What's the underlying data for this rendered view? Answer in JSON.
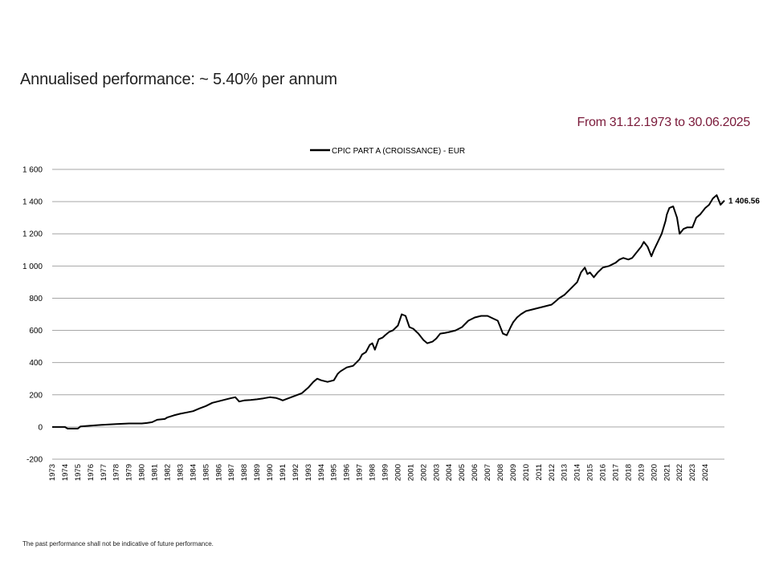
{
  "header": {
    "headline": "Annualised performance: ~ 5.40% per annum",
    "period": "From 31.12.1973 to 30.06.2025",
    "period_color": "#7a1a3a"
  },
  "footer": {
    "disclaimer": "The past performance shall not be indicative of future performance."
  },
  "chart_data": {
    "type": "line",
    "title": "",
    "xlabel": "",
    "ylabel": "",
    "ylim": [
      -200,
      1600
    ],
    "yticks": [
      -200,
      0,
      200,
      400,
      600,
      800,
      1000,
      1200,
      1400,
      1600
    ],
    "ytick_labels": [
      "-200",
      "0",
      "200",
      "400",
      "600",
      "800",
      "1 000",
      "1 200",
      "1 400",
      "1 600"
    ],
    "xlim": [
      1973.0,
      2025.5
    ],
    "xtick_labels": [
      "1973",
      "1974",
      "1975",
      "1976",
      "1977",
      "1978",
      "1979",
      "1980",
      "1981",
      "1982",
      "1983",
      "1984",
      "1985",
      "1986",
      "1987",
      "1988",
      "1989",
      "1990",
      "1991",
      "1992",
      "1993",
      "1994",
      "1995",
      "1996",
      "1997",
      "1998",
      "1999",
      "2000",
      "2001",
      "2002",
      "2003",
      "2004",
      "2005",
      "2006",
      "2007",
      "2008",
      "2009",
      "2010",
      "2011",
      "2012",
      "2013",
      "2014",
      "2015",
      "2016",
      "2017",
      "2018",
      "2019",
      "2020",
      "2021",
      "2022",
      "2023",
      "2024"
    ],
    "grid": "horizontal",
    "legend": "top-center",
    "line_color": "#000000",
    "end_label": "1 406.56",
    "series": [
      {
        "name": "CPIC PART A (CROISSANCE) - EUR",
        "x": [
          1973.0,
          1974.0,
          1974.2,
          1975.0,
          1975.2,
          1976.0,
          1977.0,
          1978.0,
          1979.0,
          1980.0,
          1980.4,
          1980.8,
          1981.2,
          1981.8,
          1982.0,
          1982.5,
          1983.0,
          1983.5,
          1984.0,
          1984.5,
          1985.0,
          1985.5,
          1986.0,
          1986.5,
          1987.0,
          1987.3,
          1987.6,
          1988.0,
          1988.5,
          1989.0,
          1989.5,
          1990.0,
          1990.5,
          1990.8,
          1991.0,
          1991.5,
          1992.0,
          1992.5,
          1993.0,
          1993.4,
          1993.7,
          1994.0,
          1994.5,
          1995.0,
          1995.3,
          1995.5,
          1996.0,
          1996.5,
          1997.0,
          1997.2,
          1997.5,
          1997.8,
          1998.0,
          1998.2,
          1998.5,
          1998.8,
          1999.0,
          1999.3,
          1999.6,
          2000.0,
          2000.3,
          2000.6,
          2000.9,
          2001.2,
          2001.6,
          2002.0,
          2002.3,
          2002.7,
          2003.0,
          2003.3,
          2003.7,
          2004.0,
          2004.5,
          2005.0,
          2005.5,
          2006.0,
          2006.5,
          2007.0,
          2007.4,
          2007.8,
          2008.0,
          2008.2,
          2008.5,
          2008.8,
          2009.0,
          2009.3,
          2009.6,
          2010.0,
          2010.5,
          2011.0,
          2011.5,
          2012.0,
          2012.3,
          2012.6,
          2013.0,
          2013.5,
          2014.0,
          2014.3,
          2014.6,
          2014.8,
          2015.0,
          2015.3,
          2015.6,
          2016.0,
          2016.5,
          2017.0,
          2017.3,
          2017.6,
          2018.0,
          2018.3,
          2018.6,
          2019.0,
          2019.2,
          2019.5,
          2019.8,
          2020.0,
          2020.3,
          2020.6,
          2020.9,
          2021.0,
          2021.2,
          2021.5,
          2021.8,
          2022.0,
          2022.3,
          2022.6,
          2023.0,
          2023.3,
          2023.6,
          2024.0,
          2024.3,
          2024.6,
          2024.9,
          2025.2,
          2025.5
        ],
        "values": [
          0,
          0,
          -10,
          -10,
          3,
          8,
          14,
          18,
          22,
          22,
          25,
          30,
          45,
          50,
          60,
          72,
          82,
          90,
          98,
          115,
          130,
          150,
          160,
          170,
          180,
          185,
          158,
          165,
          168,
          172,
          178,
          185,
          180,
          172,
          165,
          180,
          195,
          210,
          245,
          280,
          300,
          290,
          280,
          290,
          330,
          345,
          370,
          380,
          420,
          450,
          465,
          510,
          520,
          480,
          545,
          555,
          570,
          590,
          600,
          630,
          700,
          690,
          620,
          610,
          580,
          540,
          520,
          530,
          550,
          580,
          585,
          590,
          600,
          620,
          660,
          680,
          690,
          690,
          675,
          660,
          620,
          580,
          570,
          620,
          650,
          680,
          700,
          720,
          730,
          740,
          750,
          760,
          780,
          800,
          820,
          860,
          900,
          960,
          990,
          950,
          960,
          930,
          960,
          990,
          1000,
          1020,
          1040,
          1050,
          1040,
          1050,
          1080,
          1120,
          1150,
          1120,
          1060,
          1100,
          1150,
          1200,
          1280,
          1320,
          1360,
          1370,
          1300,
          1200,
          1230,
          1240,
          1240,
          1300,
          1320,
          1360,
          1380,
          1420,
          1440,
          1380,
          1406.56
        ]
      }
    ]
  }
}
